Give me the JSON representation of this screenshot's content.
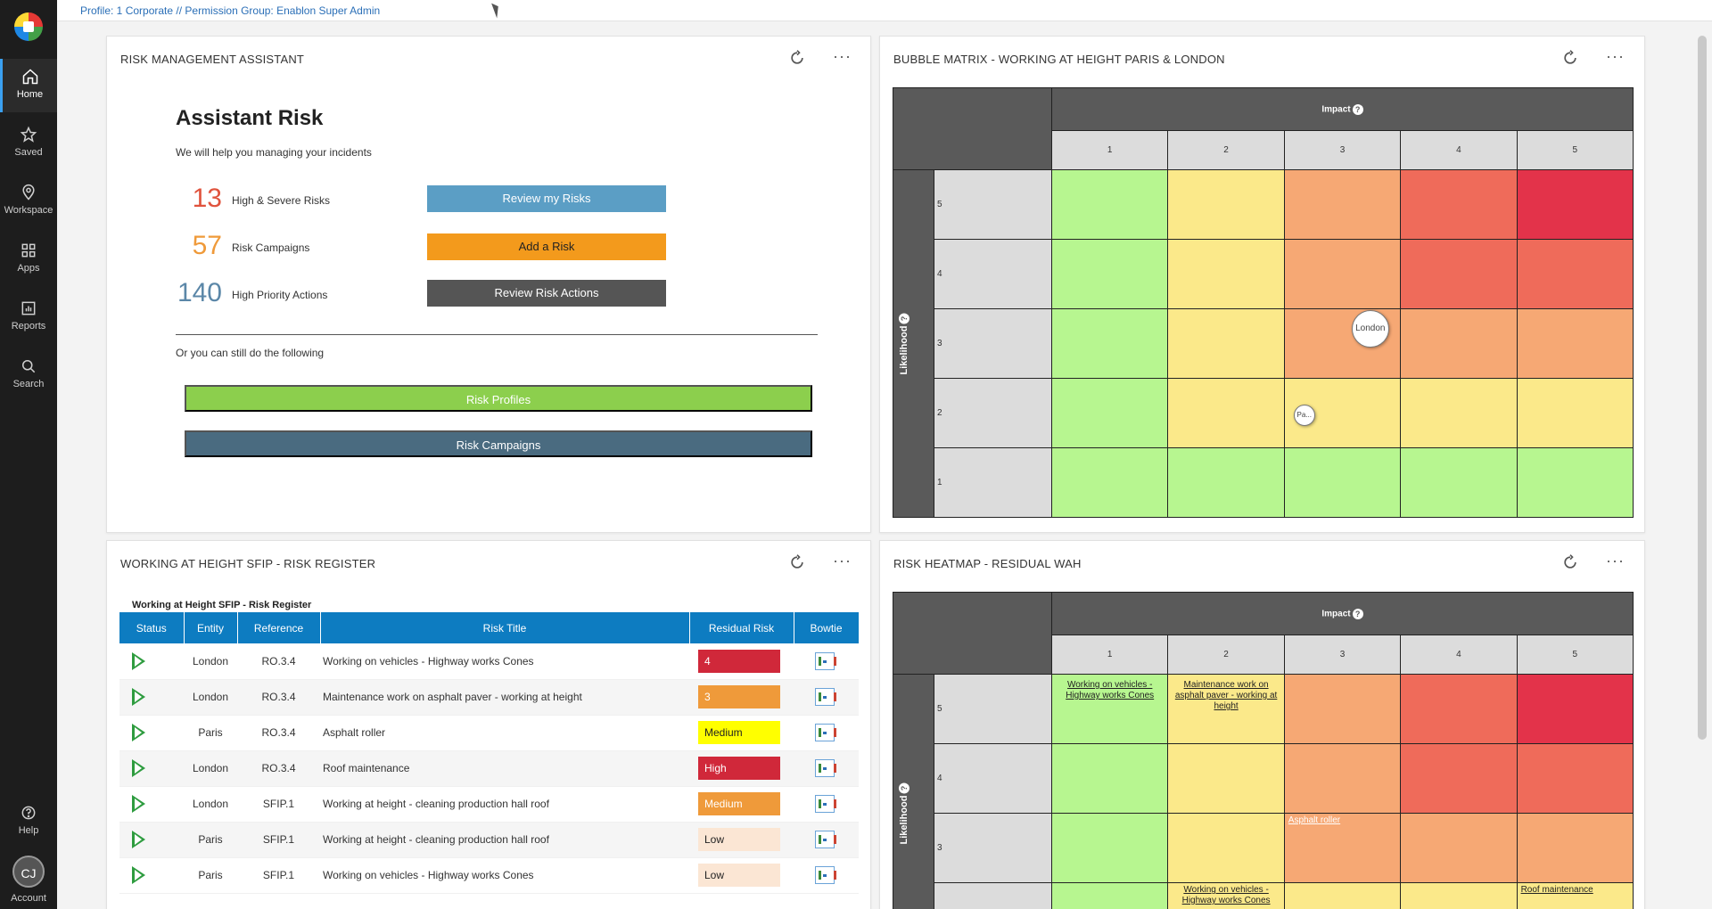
{
  "breadcrumb": "Profile: 1 Corporate // Permission Group: Enablon Super Admin",
  "sidebar": {
    "items": [
      {
        "label": "Home",
        "icon": "home-icon",
        "active": true
      },
      {
        "label": "Saved",
        "icon": "star-icon"
      },
      {
        "label": "Workspace",
        "icon": "location-pin-icon"
      },
      {
        "label": "Apps",
        "icon": "grid-icon"
      },
      {
        "label": "Reports",
        "icon": "bar-chart-icon"
      },
      {
        "label": "Search",
        "icon": "search-icon"
      }
    ],
    "help": "Help",
    "account_initials": "CJ",
    "account": "Account"
  },
  "assistant": {
    "panel_title": "RISK MANAGEMENT ASSISTANT",
    "title": "Assistant Risk",
    "subtitle": "We will help you managing your incidents",
    "stats": [
      {
        "value": "13",
        "label": "High & Severe Risks",
        "button": "Review my Risks",
        "color": "#e0533d",
        "button_color": "#5b9ec5"
      },
      {
        "value": "57",
        "label": "Risk Campaigns",
        "button": "Add a Risk",
        "color": "#ef9a3a",
        "button_color": "#f39a1c"
      },
      {
        "value": "140",
        "label": "High Priority Actions",
        "button": "Review Risk Actions",
        "color": "#5b87a8",
        "button_color": "#555555"
      }
    ],
    "or_text": "Or you can still do the following",
    "links": [
      {
        "label": "Risk Profiles",
        "color": "#8ccf4d"
      },
      {
        "label": "Risk Campaigns",
        "color": "#4a6b80"
      }
    ]
  },
  "bubble_matrix": {
    "panel_title": "BUBBLE MATRIX - WORKING AT HEIGHT PARIS & LONDON",
    "impact_label": "Impact",
    "likelihood_label": "Likelihood",
    "columns": [
      "1",
      "2",
      "3",
      "4",
      "5"
    ],
    "rows": [
      "5",
      "4",
      "3",
      "2",
      "1"
    ],
    "bubbles": [
      {
        "label": "London",
        "impact": 3,
        "likelihood": 3
      },
      {
        "label": "Pa...",
        "impact": 3,
        "likelihood": 2
      }
    ]
  },
  "register": {
    "panel_title": "WORKING AT HEIGHT SFIP - RISK REGISTER",
    "caption": "Working at Height SFIP - Risk Register",
    "headers": [
      "Status",
      "Entity",
      "Reference",
      "Risk Title",
      "Residual Risk",
      "Bowtie"
    ],
    "rows": [
      {
        "entity": "London",
        "reference": "RO.3.4",
        "title": "Working on vehicles - Highway works Cones",
        "risk": "4",
        "risk_bg": "#d0283a",
        "risk_fg": "#ffffff"
      },
      {
        "entity": "London",
        "reference": "RO.3.4",
        "title": "Maintenance work on asphalt paver - working at height",
        "risk": "3",
        "risk_bg": "#ef9a3a",
        "risk_fg": "#ffffff"
      },
      {
        "entity": "Paris",
        "reference": "RO.3.4",
        "title": "Asphalt roller",
        "risk": "Medium",
        "risk_bg": "#ffff00",
        "risk_fg": "#222222"
      },
      {
        "entity": "London",
        "reference": "RO.3.4",
        "title": "Roof maintenance",
        "risk": "High",
        "risk_bg": "#d0283a",
        "risk_fg": "#ffffff"
      },
      {
        "entity": "London",
        "reference": "SFIP.1",
        "title": "Working at height - cleaning production hall roof",
        "risk": "Medium",
        "risk_bg": "#ef9a3a",
        "risk_fg": "#ffffff"
      },
      {
        "entity": "Paris",
        "reference": "SFIP.1",
        "title": "Working at height - cleaning production hall roof",
        "risk": "Low",
        "risk_bg": "#fbe6d4",
        "risk_fg": "#222222"
      },
      {
        "entity": "Paris",
        "reference": "SFIP.1",
        "title": "Working on vehicles - Highway works Cones",
        "risk": "Low",
        "risk_bg": "#fbe6d4",
        "risk_fg": "#222222"
      }
    ]
  },
  "heatmap": {
    "panel_title": "RISK HEATMAP - RESIDUAL WAH",
    "impact_label": "Impact",
    "likelihood_label": "Likelihood",
    "columns": [
      "1",
      "2",
      "3",
      "4",
      "5"
    ],
    "rows": [
      "5",
      "4",
      "3"
    ],
    "cell_labels": {
      "r5c1": "Working on vehicles - Highway works Cones",
      "r5c2": "Maintenance work on asphalt paver - working at height",
      "r3c3": "Asphalt roller",
      "r2c2": "Working on vehicles - Highway works Cones",
      "r2c5": "Roof maintenance"
    }
  },
  "colors": {
    "green": "#b7f690",
    "yellow": "#fbe98a",
    "orange": "#f6a874",
    "red_orange": "#ef6b5a",
    "red": "#e3334a",
    "header_gray": "#5a5a5a",
    "label_gray": "#dcdcdc",
    "table_header": "#0d7cc1"
  }
}
